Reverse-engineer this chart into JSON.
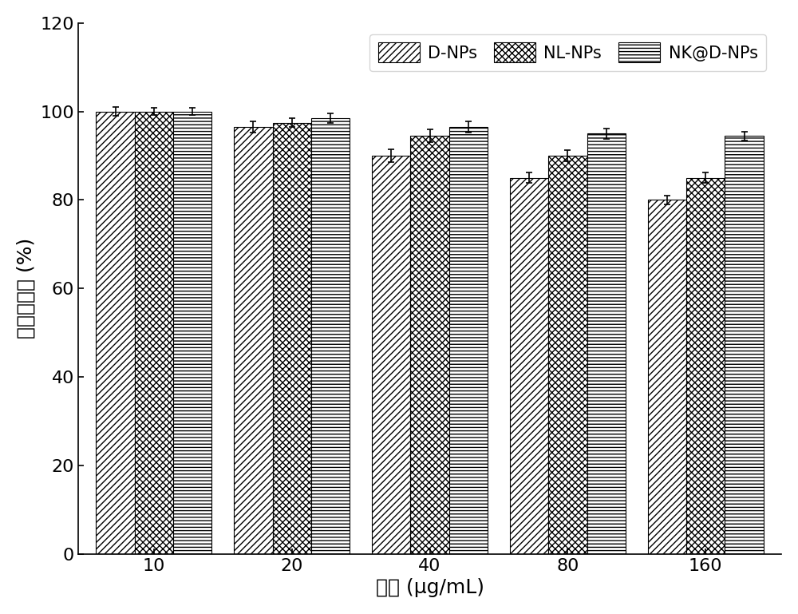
{
  "categories": [
    "10",
    "20",
    "40",
    "80",
    "160"
  ],
  "series": {
    "D-NPs": {
      "values": [
        100.0,
        96.5,
        90.0,
        85.0,
        80.0
      ],
      "errors": [
        1.0,
        1.2,
        1.5,
        1.2,
        1.0
      ],
      "hatch": "////",
      "facecolor": "white",
      "edgecolor": "black"
    },
    "NL-NPs": {
      "values": [
        100.0,
        97.5,
        94.5,
        90.0,
        85.0
      ],
      "errors": [
        0.8,
        1.0,
        1.5,
        1.2,
        1.2
      ],
      "hatch": "xxxx",
      "facecolor": "white",
      "edgecolor": "black"
    },
    "NK@D-NPs": {
      "values": [
        100.0,
        98.5,
        96.5,
        95.0,
        94.5
      ],
      "errors": [
        0.8,
        1.0,
        1.2,
        1.2,
        1.0
      ],
      "hatch": "----",
      "facecolor": "white",
      "edgecolor": "black"
    }
  },
  "xlabel": "浓度 (μg/mL)",
  "ylabel": "细胞存活率 (%)",
  "ylim": [
    0,
    120
  ],
  "yticks": [
    0,
    20,
    40,
    60,
    80,
    100,
    120
  ],
  "bar_width": 0.28,
  "background_color": "white",
  "legend_fontsize": 15,
  "axis_fontsize": 18,
  "tick_fontsize": 16
}
